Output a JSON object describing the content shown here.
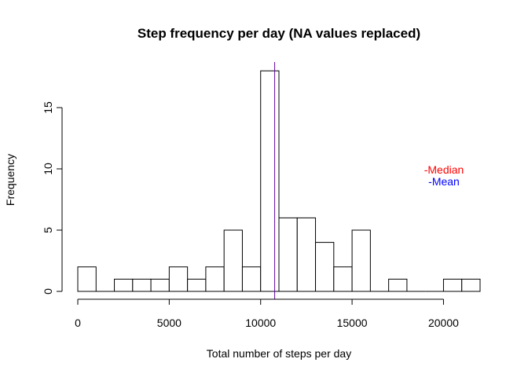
{
  "chart_data": {
    "type": "bar",
    "title": "Step frequency per day (NA values replaced)",
    "xlabel": "Total number of steps per day",
    "ylabel": "Frequency",
    "bin_width": 1000,
    "bins": [
      {
        "start": 0,
        "end": 1000,
        "count": 2
      },
      {
        "start": 1000,
        "end": 2000,
        "count": 0
      },
      {
        "start": 2000,
        "end": 3000,
        "count": 1
      },
      {
        "start": 3000,
        "end": 4000,
        "count": 1
      },
      {
        "start": 4000,
        "end": 5000,
        "count": 1
      },
      {
        "start": 5000,
        "end": 6000,
        "count": 2
      },
      {
        "start": 6000,
        "end": 7000,
        "count": 1
      },
      {
        "start": 7000,
        "end": 8000,
        "count": 2
      },
      {
        "start": 8000,
        "end": 9000,
        "count": 5
      },
      {
        "start": 9000,
        "end": 10000,
        "count": 2
      },
      {
        "start": 10000,
        "end": 11000,
        "count": 18
      },
      {
        "start": 11000,
        "end": 12000,
        "count": 6
      },
      {
        "start": 12000,
        "end": 13000,
        "count": 6
      },
      {
        "start": 13000,
        "end": 14000,
        "count": 4
      },
      {
        "start": 14000,
        "end": 15000,
        "count": 2
      },
      {
        "start": 15000,
        "end": 16000,
        "count": 5
      },
      {
        "start": 16000,
        "end": 17000,
        "count": 0
      },
      {
        "start": 17000,
        "end": 18000,
        "count": 1
      },
      {
        "start": 18000,
        "end": 19000,
        "count": 0
      },
      {
        "start": 19000,
        "end": 20000,
        "count": 0
      },
      {
        "start": 20000,
        "end": 21000,
        "count": 1
      },
      {
        "start": 21000,
        "end": 22000,
        "count": 1
      }
    ],
    "x_ticks": [
      0,
      5000,
      10000,
      15000,
      20000
    ],
    "x_tick_labels": [
      "0",
      "5000",
      "10000",
      "15000",
      "20000"
    ],
    "y_ticks": [
      0,
      5,
      10,
      15
    ],
    "y_tick_labels": [
      "0",
      "5",
      "10",
      "15"
    ],
    "xlim": [
      0,
      22000
    ],
    "ylim": [
      0,
      18
    ],
    "median": 10766.19,
    "mean": 10766.19,
    "annotations": [
      {
        "text": "-Median",
        "color": "#ff0000"
      },
      {
        "text": "-Mean",
        "color": "#0000ff"
      }
    ],
    "bar_fill": "#ffffff",
    "bar_stroke": "#000000",
    "median_color": "#ff0000",
    "mean_color": "#0000ff",
    "grid": false,
    "legend": "none"
  }
}
